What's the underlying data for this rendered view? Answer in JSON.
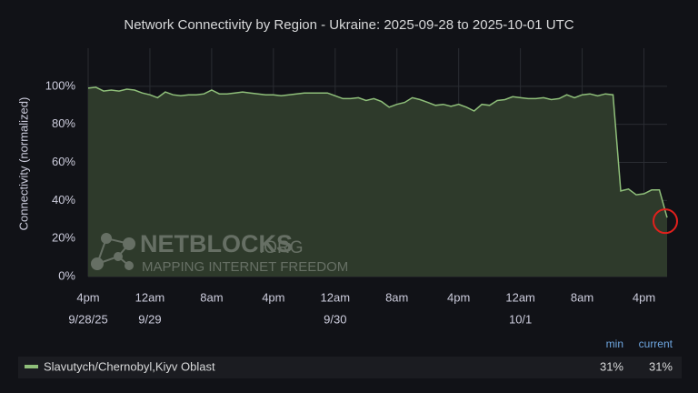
{
  "chart_data": {
    "type": "area",
    "title": "Network Connectivity by Region - Ukraine: 2025-09-28 to 2025-10-01 UTC",
    "ylabel": "Connectivity (normalized)",
    "x": [
      "2025-09-28T16:00",
      "2025-09-28T17:00",
      "2025-09-28T18:00",
      "2025-09-28T19:00",
      "2025-09-28T20:00",
      "2025-09-28T21:00",
      "2025-09-28T22:00",
      "2025-09-28T23:00",
      "2025-09-29T00:00",
      "2025-09-29T01:00",
      "2025-09-29T02:00",
      "2025-09-29T03:00",
      "2025-09-29T04:00",
      "2025-09-29T05:00",
      "2025-09-29T06:00",
      "2025-09-29T07:00",
      "2025-09-29T08:00",
      "2025-09-29T09:00",
      "2025-09-29T10:00",
      "2025-09-29T11:00",
      "2025-09-29T12:00",
      "2025-09-29T13:00",
      "2025-09-29T14:00",
      "2025-09-29T15:00",
      "2025-09-29T16:00",
      "2025-09-29T17:00",
      "2025-09-29T18:00",
      "2025-09-29T19:00",
      "2025-09-29T20:00",
      "2025-09-29T21:00",
      "2025-09-29T22:00",
      "2025-09-29T23:00",
      "2025-09-30T00:00",
      "2025-09-30T01:00",
      "2025-09-30T02:00",
      "2025-09-30T03:00",
      "2025-09-30T04:00",
      "2025-09-30T05:00",
      "2025-09-30T06:00",
      "2025-09-30T07:00",
      "2025-09-30T08:00",
      "2025-09-30T09:00",
      "2025-09-30T10:00",
      "2025-09-30T11:00",
      "2025-09-30T12:00",
      "2025-09-30T13:00",
      "2025-09-30T14:00",
      "2025-09-30T15:00",
      "2025-09-30T16:00",
      "2025-09-30T17:00",
      "2025-09-30T18:00",
      "2025-09-30T19:00",
      "2025-09-30T20:00",
      "2025-09-30T21:00",
      "2025-09-30T22:00",
      "2025-09-30T23:00",
      "2025-10-01T00:00",
      "2025-10-01T01:00",
      "2025-10-01T02:00",
      "2025-10-01T03:00",
      "2025-10-01T04:00",
      "2025-10-01T05:00",
      "2025-10-01T06:00",
      "2025-10-01T07:00",
      "2025-10-01T08:00",
      "2025-10-01T09:00",
      "2025-10-01T10:00",
      "2025-10-01T11:00",
      "2025-10-01T12:00",
      "2025-10-01T13:00",
      "2025-10-01T14:00",
      "2025-10-01T15:00",
      "2025-10-01T16:00",
      "2025-10-01T17:00",
      "2025-10-01T18:00",
      "2025-10-01T19:00"
    ],
    "series": [
      {
        "name": "Slavutych/Chernobyl,Kiyv Oblast",
        "color": "#8fbf7a",
        "fill": "#2e3a2b",
        "values": [
          99,
          99.5,
          97.5,
          98,
          97.5,
          98.5,
          98,
          96.5,
          95.5,
          94,
          97,
          95.5,
          95,
          95.5,
          95.5,
          96,
          98,
          96,
          96,
          96.5,
          97,
          96.5,
          96,
          95.5,
          95.5,
          95,
          95.5,
          96,
          96.5,
          96.5,
          96.5,
          96.5,
          95,
          93.5,
          93.5,
          94,
          92.5,
          93.5,
          92,
          89,
          90.5,
          91.5,
          94,
          93,
          91.5,
          90,
          90.5,
          89.5,
          90.5,
          89,
          87,
          90.5,
          90,
          92.5,
          93,
          94.5,
          94,
          93.5,
          93.5,
          94,
          93,
          93.5,
          95.5,
          94,
          95.5,
          96,
          95,
          96,
          95.5,
          45,
          46,
          43,
          43.5,
          45.5,
          45.5,
          31
        ]
      }
    ],
    "xlim": [
      "2025-09-28T16:00",
      "2025-10-01T19:00"
    ],
    "xticks": [
      {
        "value": "2025-09-28T16:00",
        "label": "4pm"
      },
      {
        "value": "2025-09-29T00:00",
        "label": "12am"
      },
      {
        "value": "2025-09-29T08:00",
        "label": "8am"
      },
      {
        "value": "2025-09-29T16:00",
        "label": "4pm"
      },
      {
        "value": "2025-09-30T00:00",
        "label": "12am"
      },
      {
        "value": "2025-09-30T08:00",
        "label": "8am"
      },
      {
        "value": "2025-09-30T16:00",
        "label": "4pm"
      },
      {
        "value": "2025-10-01T00:00",
        "label": "12am"
      },
      {
        "value": "2025-10-01T08:00",
        "label": "8am"
      },
      {
        "value": "2025-10-01T16:00",
        "label": "4pm"
      }
    ],
    "xtick_dates": [
      {
        "value": "2025-09-28T16:00",
        "label": "9/28/25"
      },
      {
        "value": "2025-09-29T00:00",
        "label": "9/29"
      },
      {
        "value": "2025-09-30T00:00",
        "label": "9/30"
      },
      {
        "value": "2025-10-01T00:00",
        "label": "10/1"
      }
    ],
    "ylim": [
      0,
      120
    ],
    "yticks": [
      {
        "value": 0,
        "label": "0%"
      },
      {
        "value": 20,
        "label": "20%"
      },
      {
        "value": 40,
        "label": "40%"
      },
      {
        "value": 60,
        "label": "60%"
      },
      {
        "value": 80,
        "label": "80%"
      },
      {
        "value": 100,
        "label": "100%"
      }
    ],
    "grid": true,
    "legend_headers": [
      "min",
      "current"
    ],
    "legend_stats": [
      {
        "value": 31,
        "label": "31%"
      },
      {
        "value": 31,
        "label": "31%"
      }
    ],
    "watermark": {
      "name": "NETBLOCKS",
      "suffix": ".ORG",
      "tagline": "MAPPING INTERNET FREEDOM"
    }
  }
}
